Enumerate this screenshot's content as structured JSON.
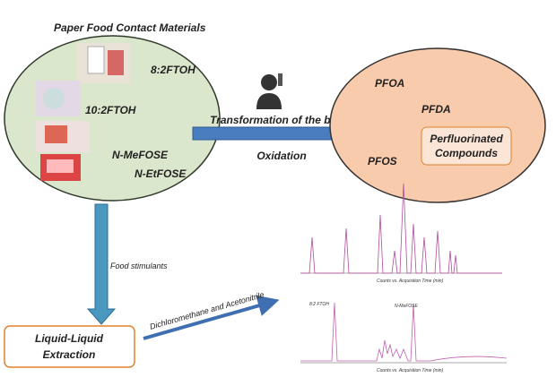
{
  "source_group": {
    "title": "Paper Food Contact Materials",
    "compounds": [
      "8:2FTOH",
      "10:2FTOH",
      "N-MeFOSE",
      "N-EtFOSE"
    ]
  },
  "transformation": {
    "label": "Transformation of the body",
    "sub_label": "Oxidation"
  },
  "products": {
    "compounds": [
      "PFOA",
      "PFDA",
      "PFOS"
    ],
    "box_lines": [
      "Perfluorinated",
      "Compounds"
    ]
  },
  "extraction": {
    "step_label": "Food stimulants",
    "box_lines": [
      "Liquid-Liquid",
      "Extraction"
    ],
    "solvent_label": "Dichloromethane and Acetonitrile"
  },
  "chromatograms": [
    {
      "x_title": "Counts vs. Acquisition Time (min)"
    },
    {
      "x_title": "Counts vs. Acquisition Time (min)",
      "peak_labels": [
        "8:2 FTOH",
        "N-MeFOSE"
      ]
    }
  ]
}
